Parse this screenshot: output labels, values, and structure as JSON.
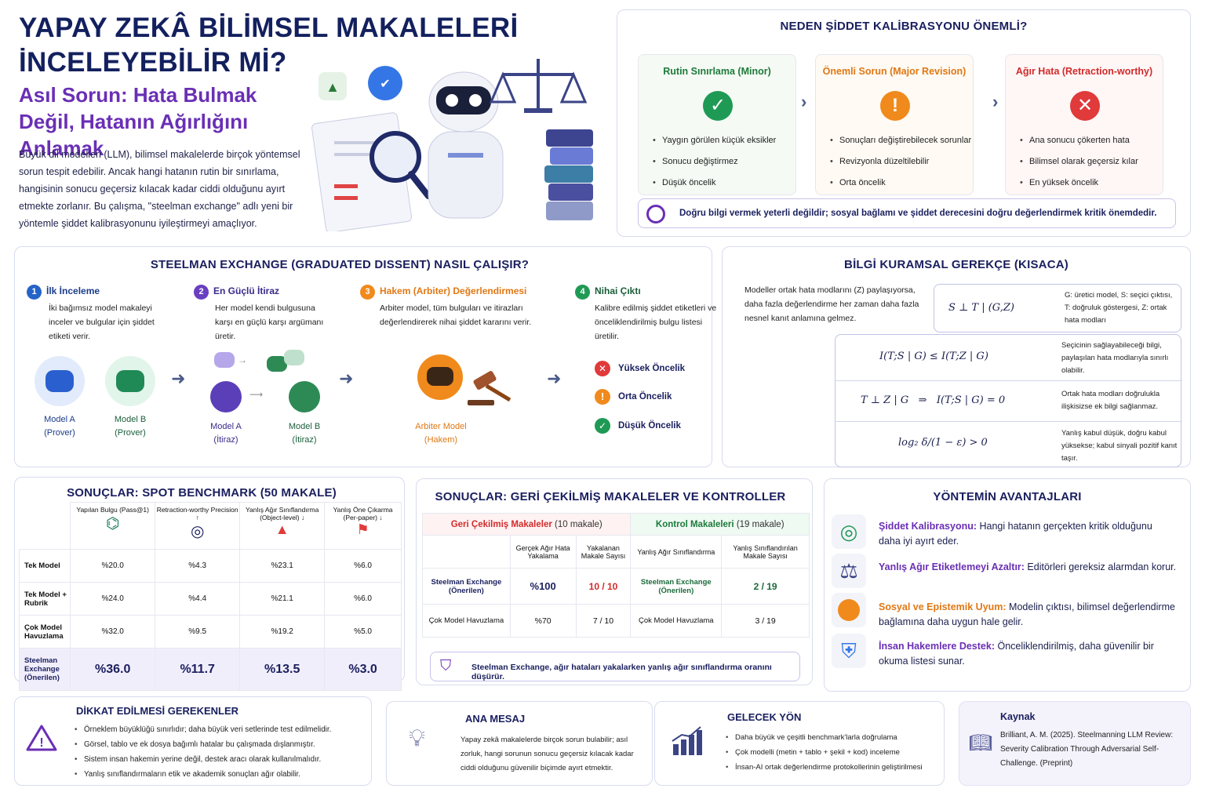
{
  "hero": {
    "title": "YAPAY ZEKÂ BİLİMSEL MAKALELERİ İNCELEYEBİLİR Mİ?",
    "subtitle": "Asıl Sorun: Hata Bulmak Değil, Hatanın Ağırlığını Anlamak",
    "intro": "Büyük dil modelleri (LLM), bilimsel makalelerde birçok yöntemsel sorun tespit edebilir. Ancak hangi hatanın rutin bir sınırlama, hangisinin sonucu geçersiz kılacak kadar ciddi olduğunu ayırt etmekte zorlanır. Bu çalışma, \"steelman exchange\" adlı yeni bir yöntemle şiddet kalibrasyonunu iyileştirmeyi amaçlıyor."
  },
  "why": {
    "title": "NEDEN ŞİDDET KALİBRASYONU ÖNEMLİ?",
    "cards": [
      {
        "title": "Rutin Sınırlama (Minor)",
        "items": [
          "Yaygın görülen küçük eksikler",
          "Sonucu değiştirmez",
          "Düşük öncelik"
        ]
      },
      {
        "title": "Önemli Sorun (Major Revision)",
        "items": [
          "Sonuçları değiştirebilecek sorunlar",
          "Revizyonla düzeltilebilir",
          "Orta öncelik"
        ]
      },
      {
        "title": "Ağır Hata (Retraction-worthy)",
        "items": [
          "Ana sonucu çökerten hata",
          "Bilimsel olarak geçersiz kılar",
          "En yüksek öncelik"
        ]
      }
    ],
    "note": "Doğru bilgi vermek yeterli değildir; sosyal bağlamı ve şiddet derecesini doğru değerlendirmek kritik önemdedir."
  },
  "steelman": {
    "title": "STEELMAN EXCHANGE (GRADUATED DISSENT) NASIL ÇALIŞIR?",
    "steps": [
      {
        "num": "1",
        "title": "İlk İnceleme",
        "desc": "İki bağımsız model makaleyi inceler ve bulgular için şiddet etiketi verir."
      },
      {
        "num": "2",
        "title": "En Güçlü İtiraz",
        "desc": "Her model kendi bulgusuna karşı en güçlü karşı argümanı üretir."
      },
      {
        "num": "3",
        "title": "Hakem (Arbiter) Değerlendirmesi",
        "desc": "Arbiter model, tüm bulguları ve itirazları değerlendirerek nihai şiddet kararını verir."
      },
      {
        "num": "4",
        "title": "Nihai Çıktı",
        "desc": "Kalibre edilmiş şiddet etiketleri ve önceliklendirilmiş bulgu listesi üretilir."
      }
    ],
    "modelA": "Model A",
    "prover": "(Prover)",
    "modelB": "Model B",
    "itiraz": "(İtiraz)",
    "arbiter": "Arbiter Model",
    "hakem": "(Hakem)",
    "outputs": [
      "Yüksek Öncelik",
      "Orta Öncelik",
      "Düşük Öncelik"
    ]
  },
  "theory": {
    "title": "BİLGİ KURAMSAL GEREKÇE (KISACA)",
    "intro": "Modeller ortak hata modlarını (Z) paylaşıyorsa, daha fazla değerlendirme her zaman daha fazla nesnel kanıt anlamına gelmez.",
    "rows": [
      {
        "formula": "S ⊥ T | (G,Z)",
        "note": "G: üretici model, S: seçici çıktısı, T: doğruluk göstergesi, Z: ortak hata modları"
      },
      {
        "formula": "I(T;S | G) ≤ I(T;Z | G)",
        "note": "Seçicinin sağlayabileceği bilgi, paylaşılan hata modlarıyla sınırlı olabilir."
      },
      {
        "formula": "T ⊥ Z | G   ⇒   I(T;S | G) = 0",
        "note": "Ortak hata modları doğrulukla ilişkisizse ek bilgi sağlanmaz."
      },
      {
        "formula": "log₂ δ/(1 − ε) > 0",
        "note": "Yanlış kabul düşük, doğru kabul yüksekse; kabul sinyali pozitif kanıt taşır."
      }
    ]
  },
  "spot": {
    "title": "SONUÇLAR: SPOT BENCHMARK (50 MAKALE)",
    "headers": [
      "Yapılan Bulgu (Pass@1)",
      "Retraction-worthy Precision ↑",
      "Yanlış Ağır Sınıflandırma (Object-level) ↓",
      "Yanlış Öne Çıkarma (Per-paper) ↓"
    ],
    "rows": [
      {
        "label": "Tek Model",
        "vals": [
          "%20.0",
          "%4.3",
          "%23.1",
          "%6.0"
        ]
      },
      {
        "label": "Tek Model + Rubrik",
        "vals": [
          "%24.0",
          "%4.4",
          "%21.1",
          "%6.0"
        ]
      },
      {
        "label": "Çok Model Havuzlama",
        "vals": [
          "%32.0",
          "%9.5",
          "%19.2",
          "%5.0"
        ]
      },
      {
        "label": "Steelman Exchange (Önerilen)",
        "vals": [
          "%36.0",
          "%11.7",
          "%13.5",
          "%3.0"
        ]
      }
    ]
  },
  "retracted": {
    "title": "SONUÇLAR: GERİ ÇEKİLMİŞ MAKALELER VE KONTROLLER",
    "group1": "Geri Çekilmiş Makaleler",
    "group1_count": "(10 makale)",
    "group2": "Kontrol Makaleleri",
    "group2_count": "(19 makale)",
    "headers": [
      "Gerçek Ağır Hata Yakalama",
      "Yakalanan Makale Sayısı",
      "Yanlış Ağır Sınıflandırma",
      "Yanlış Sınıflandırılan Makale Sayısı"
    ],
    "rows": [
      {
        "label": "Steelman Exchange (Önerilen)",
        "vals": [
          "%100",
          "10 / 10"
        ],
        "label2": "Steelman Exchange (Önerilen)",
        "vals2": [
          "2 / 19"
        ]
      },
      {
        "label": "Çok Model Havuzlama",
        "vals": [
          "%70",
          "7 / 10"
        ],
        "label2": "Çok Model Havuzlama",
        "vals2": [
          "3 / 19"
        ]
      }
    ],
    "note": "Steelman Exchange, ağır hataları yakalarken yanlış ağır sınıflandırma oranını düşürür."
  },
  "advantages": {
    "title": "YÖNTEMİN AVANTAJLARI",
    "items": [
      {
        "head": "Şiddet Kalibrasyonu:",
        "text": " Hangi hatanın gerçekten kritik olduğunu daha iyi ayırt eder."
      },
      {
        "head": "Yanlış Ağır Etiketlemeyi Azaltır:",
        "text": " Editörleri gereksiz alarmdan korur."
      },
      {
        "head": "Sosyal ve Epistemik Uyum:",
        "text": " Modelin çıktısı, bilimsel değerlendirme bağlamına daha uygun hale gelir."
      },
      {
        "head": "İnsan Hakemlere Destek:",
        "text": " Önceliklendirilmiş, daha güvenilir bir okuma listesi sunar."
      }
    ]
  },
  "cautions": {
    "title": "DİKKAT EDİLMESİ GEREKENLER",
    "items": [
      "Örneklem büyüklüğü sınırlıdır; daha büyük veri setlerinde test edilmelidir.",
      "Görsel, tablo ve ek dosya bağımlı hatalar bu çalışmada dışlanmıştır.",
      "Sistem insan hakemin yerine değil, destek aracı olarak kullanılmalıdır.",
      "Yanlış sınıflandırmaların etik ve akademik sonuçları ağır olabilir."
    ]
  },
  "message": {
    "title": "ANA MESAJ",
    "text": "Yapay zekâ makalelerde birçok sorun bulabilir; asıl zorluk, hangi sorunun sonucu geçersiz kılacak kadar ciddi olduğunu güvenilir biçimde ayırt etmektir."
  },
  "future": {
    "title": "GELECEK YÖN",
    "items": [
      "Daha büyük ve çeşitli benchmark'larla doğrulama",
      "Çok modelli (metin + tablo + şekil + kod) inceleme",
      "İnsan-AI ortak değerlendirme protokollerinin geliştirilmesi"
    ]
  },
  "source": {
    "title": "Kaynak",
    "text": "Brilliant, A. M. (2025). Steelmanning LLM Review: Severity Calibration Through Adversarial Self-Challenge. (Preprint)"
  },
  "colors": {
    "navy": "#13205e",
    "purple": "#6a2fb5",
    "green": "#1f9a55",
    "orange": "#f08a1c",
    "red": "#e03a3a"
  }
}
